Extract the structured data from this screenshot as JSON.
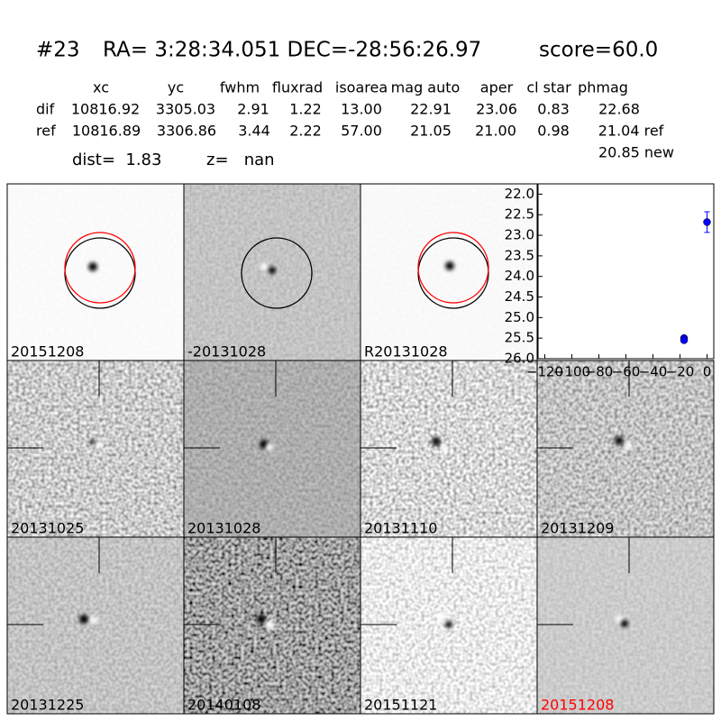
{
  "header": {
    "id": "#23",
    "coords": "RA= 3:28:34.051 DEC=-28:56:26.97",
    "score": "score=60.0"
  },
  "table": {
    "columns": [
      "xc",
      "yc",
      "fwhm",
      "fluxrad",
      "isoarea",
      "mag auto",
      "aper",
      "cl star",
      "phmag"
    ],
    "rows": [
      [
        "dif",
        "10816.92",
        "3305.03",
        "2.91",
        "1.22",
        "13.00",
        "22.91",
        "23.06",
        "0.83",
        "22.68"
      ],
      [
        "ref",
        "10816.89",
        "3306.86",
        "3.44",
        "2.22",
        "57.00",
        "21.05",
        "21.00",
        "0.98",
        "21.04 ref"
      ]
    ],
    "phmag_new": "20.85 new"
  },
  "summary": {
    "dist": "dist=  1.83",
    "z": "z=   nan"
  },
  "panels": [
    {
      "label": "20151208"
    },
    {
      "label": "-20131028"
    },
    {
      "label": "R20131028"
    },
    {
      "label": "20131025"
    },
    {
      "label": "20131028"
    },
    {
      "label": "20131110"
    },
    {
      "label": "20131209"
    },
    {
      "label": "20131225"
    },
    {
      "label": "20140108"
    },
    {
      "label": "20151121"
    },
    {
      "label": "20151208",
      "label_color": "#ff0000"
    }
  ],
  "chart_data": {
    "type": "scatter",
    "x": [
      -17,
      -17,
      0
    ],
    "series": [
      {
        "color": "#0000ff",
        "values": [
          25.5,
          25.55,
          22.68
        ],
        "errors": [
          0.05,
          0.05,
          0.25
        ]
      }
    ],
    "xlim": [
      -125,
      5
    ],
    "ylim": [
      26,
      21.75
    ],
    "xticks": [
      {
        "value": -120,
        "label": "−120"
      },
      {
        "value": -100,
        "label": "−100"
      },
      {
        "value": -80,
        "label": "−80"
      },
      {
        "value": -60,
        "label": "−60"
      },
      {
        "value": -40,
        "label": "−40"
      },
      {
        "value": -20,
        "label": "−20"
      },
      0
    ],
    "yticks": [
      {
        "value": 22,
        "label": "22.0"
      },
      {
        "value": 22.5,
        "label": "22.5"
      },
      {
        "value": 23,
        "label": "23.0"
      },
      {
        "value": 23.5,
        "label": "23.5"
      },
      {
        "value": 24,
        "label": "24.0"
      },
      {
        "value": 24.5,
        "label": "24.5"
      },
      {
        "value": 25,
        "label": "25.0"
      },
      {
        "value": 25.5,
        "label": "25.5"
      },
      {
        "value": 26,
        "label": "26.0"
      }
    ]
  }
}
